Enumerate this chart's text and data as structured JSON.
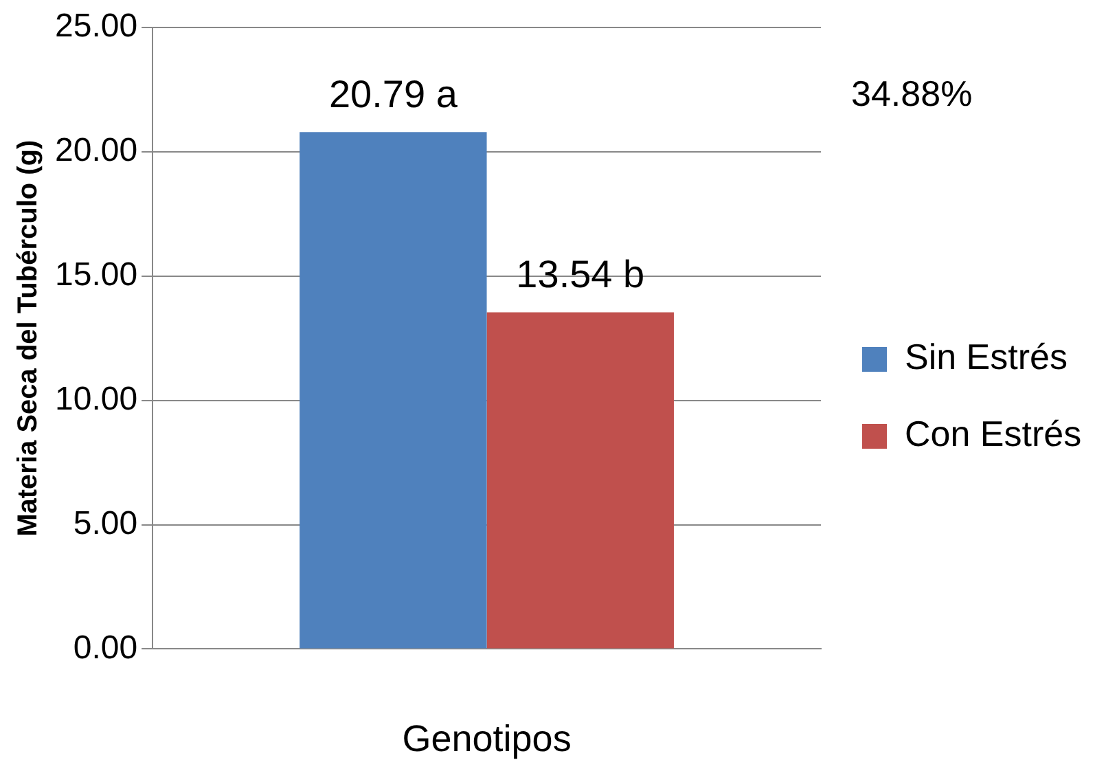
{
  "chart_data": {
    "type": "bar",
    "xlabel": "Genotipos",
    "ylabel": "Materia Seca del Tubérculo (g)",
    "categories": [
      null
    ],
    "series": [
      {
        "name": "Sin Estrés",
        "color": "#4f81bd",
        "values": [
          20.79
        ],
        "value_labels": [
          "20.79 a"
        ]
      },
      {
        "name": "Con Estrés",
        "color": "#c0504d",
        "values": [
          13.54
        ],
        "value_labels": [
          "13.54 b"
        ]
      }
    ],
    "ylim": [
      0,
      25
    ],
    "yticks": [
      {
        "value": 0,
        "label": "0.00"
      },
      {
        "value": 5,
        "label": "5.00"
      },
      {
        "value": 10,
        "label": "10.00"
      },
      {
        "value": 15,
        "label": "15.00"
      },
      {
        "value": 20,
        "label": "20.00"
      },
      {
        "value": 25,
        "label": "25.00"
      }
    ],
    "grid": "y",
    "legend": "right",
    "annotations": [
      "34.88%"
    ]
  }
}
